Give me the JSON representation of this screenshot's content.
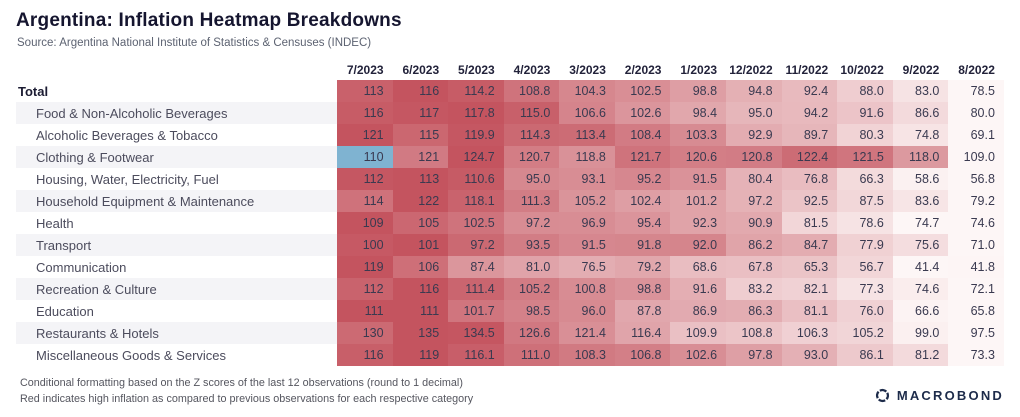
{
  "header": {
    "title": "Argentina: Inflation Heatmap Breakdowns",
    "source": "Source: Argentina National Institute of Statistics & Censuses (INDEC)"
  },
  "chart_data": {
    "type": "heatmap",
    "columns": [
      "7/2023",
      "6/2023",
      "5/2023",
      "4/2023",
      "3/2023",
      "2/2023",
      "1/2023",
      "12/2022",
      "11/2022",
      "10/2022",
      "9/2022",
      "8/2022"
    ],
    "rows": [
      {
        "label": "Total",
        "bold": true,
        "values": [
          "113",
          "116",
          "114.2",
          "108.8",
          "104.3",
          "102.5",
          "98.8",
          "94.8",
          "92.4",
          "88.0",
          "83.0",
          "78.5"
        ]
      },
      {
        "label": "Food & Non-Alcoholic Beverages",
        "values": [
          "116",
          "117",
          "117.8",
          "115.0",
          "106.6",
          "102.6",
          "98.4",
          "95.0",
          "94.2",
          "91.6",
          "86.6",
          "80.0"
        ]
      },
      {
        "label": "Alcoholic Beverages & Tobacco",
        "values": [
          "121",
          "115",
          "119.9",
          "114.3",
          "113.4",
          "108.4",
          "103.3",
          "92.9",
          "89.7",
          "80.3",
          "74.8",
          "69.1"
        ]
      },
      {
        "label": "Clothing & Footwear",
        "values": [
          "110",
          "121",
          "124.7",
          "120.7",
          "118.8",
          "121.7",
          "120.6",
          "120.8",
          "122.4",
          "121.5",
          "118.0",
          "109.0"
        ]
      },
      {
        "label": "Housing, Water, Electricity, Fuel",
        "values": [
          "112",
          "113",
          "110.6",
          "95.0",
          "93.1",
          "95.2",
          "91.5",
          "80.4",
          "76.8",
          "66.3",
          "58.6",
          "56.8"
        ]
      },
      {
        "label": "Household Equipment & Maintenance",
        "values": [
          "114",
          "122",
          "118.1",
          "111.3",
          "105.2",
          "102.4",
          "101.2",
          "97.2",
          "92.5",
          "87.5",
          "83.6",
          "79.2"
        ]
      },
      {
        "label": "Health",
        "values": [
          "109",
          "105",
          "102.5",
          "97.2",
          "96.9",
          "95.4",
          "92.3",
          "90.9",
          "81.5",
          "78.6",
          "74.7",
          "74.6"
        ]
      },
      {
        "label": "Transport",
        "values": [
          "100",
          "101",
          "97.2",
          "93.5",
          "91.5",
          "91.8",
          "92.0",
          "86.2",
          "84.7",
          "77.9",
          "75.6",
          "71.0"
        ]
      },
      {
        "label": "Communication",
        "values": [
          "119",
          "106",
          "87.4",
          "81.0",
          "76.5",
          "79.2",
          "68.6",
          "67.8",
          "65.3",
          "56.7",
          "41.4",
          "41.8"
        ]
      },
      {
        "label": "Recreation & Culture",
        "values": [
          "112",
          "116",
          "111.4",
          "105.2",
          "100.8",
          "98.8",
          "91.6",
          "83.2",
          "82.1",
          "77.3",
          "74.6",
          "72.1"
        ]
      },
      {
        "label": "Education",
        "values": [
          "111",
          "111",
          "101.7",
          "98.5",
          "96.0",
          "87.8",
          "86.9",
          "86.3",
          "81.1",
          "76.0",
          "66.6",
          "65.8"
        ]
      },
      {
        "label": "Restaurants & Hotels",
        "values": [
          "130",
          "135",
          "134.5",
          "126.6",
          "121.4",
          "116.4",
          "109.9",
          "108.8",
          "106.3",
          "105.2",
          "99.0",
          "97.5"
        ]
      },
      {
        "label": "Miscellaneous Goods & Services",
        "values": [
          "116",
          "119",
          "116.1",
          "111.0",
          "108.3",
          "106.8",
          "102.6",
          "97.8",
          "93.0",
          "86.1",
          "81.2",
          "73.3"
        ]
      }
    ],
    "colors": {
      "heat_low": "#fdf6f6",
      "heat_high": "#c4545f",
      "cold": "#7fb3d1"
    },
    "special_cells": [
      {
        "row": 3,
        "col": 0,
        "color": "#7fb3d1"
      }
    ],
    "legend_position": "none",
    "grid": false
  },
  "footer": {
    "note_line1": "Conditional formatting based on the Z scores of the last 12 observations (round to 1 decimal)",
    "note_line2": "Red indicates high inflation as compared to previous observations for each respective category",
    "logo_text": "MACROBOND",
    "logo_color": "#1d2b4a"
  }
}
